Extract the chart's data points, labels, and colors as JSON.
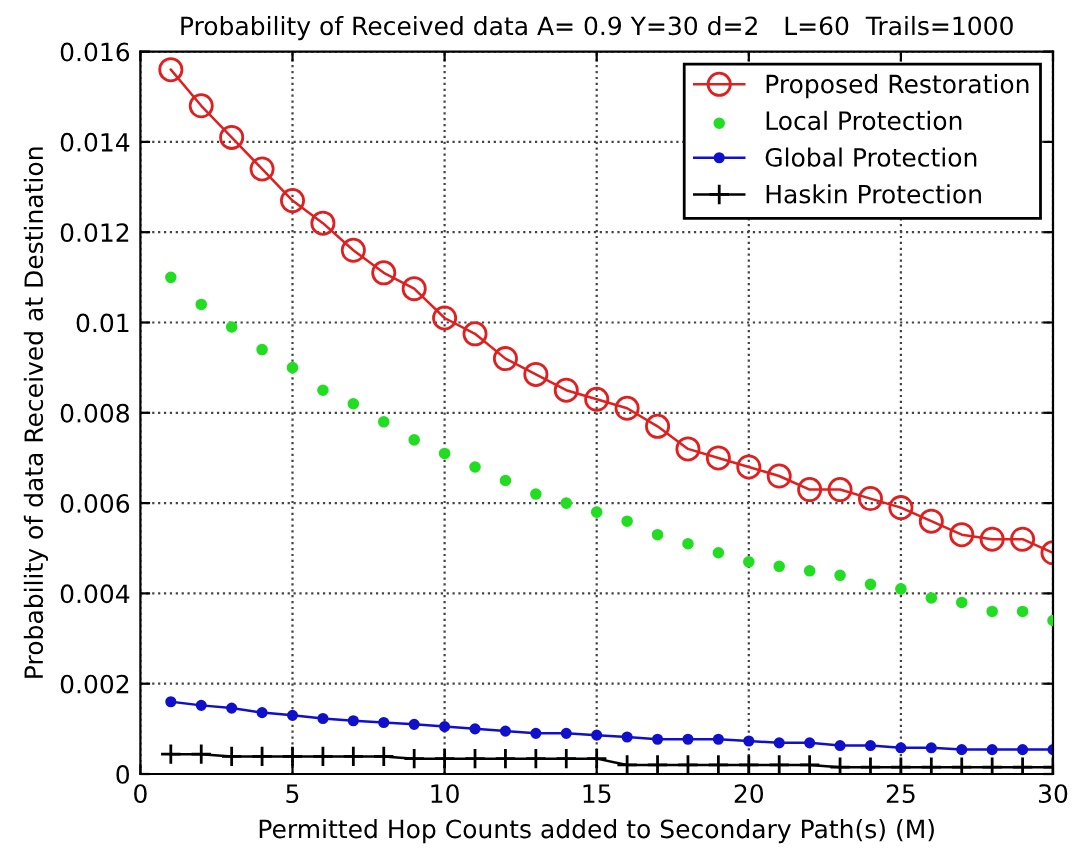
{
  "chart_data": {
    "type": "line",
    "title": "Probability of Received data A= 0.9 Y=30 d=2   L=60  Trails=1000",
    "xlabel": "Permitted Hop Counts added to Secondary Path(s) (M)",
    "ylabel": "Probability of data Received at Destination",
    "x": [
      1,
      2,
      3,
      4,
      5,
      6,
      7,
      8,
      9,
      10,
      11,
      12,
      13,
      14,
      15,
      16,
      17,
      18,
      19,
      20,
      21,
      22,
      23,
      24,
      25,
      26,
      27,
      28,
      29,
      30
    ],
    "series": [
      {
        "name": "Proposed Restoration",
        "color": "#e02020",
        "marker": "circle",
        "line_style": "solid",
        "values": [
          0.0156,
          0.0148,
          0.0141,
          0.0134,
          0.0127,
          0.0122,
          0.0116,
          0.0111,
          0.01075,
          0.0101,
          0.00975,
          0.0092,
          0.00885,
          0.0085,
          0.0083,
          0.0081,
          0.0077,
          0.0072,
          0.007,
          0.0068,
          0.0066,
          0.0063,
          0.0063,
          0.0061,
          0.0059,
          0.0056,
          0.0053,
          0.0052,
          0.0052,
          0.0049
        ]
      },
      {
        "name": "Local Protection",
        "type": "scatter",
        "color": "#22dd22",
        "marker": "point",
        "values": [
          0.011,
          0.0104,
          0.0099,
          0.0094,
          0.009,
          0.0085,
          0.0082,
          0.0078,
          0.0074,
          0.0071,
          0.0068,
          0.0065,
          0.0062,
          0.006,
          0.0058,
          0.0056,
          0.0053,
          0.0051,
          0.0049,
          0.0047,
          0.0046,
          0.0045,
          0.0044,
          0.0042,
          0.0041,
          0.0039,
          0.0038,
          0.0036,
          0.0036,
          0.0034
        ]
      },
      {
        "name": "Global Protection",
        "color": "#1010cc",
        "marker": "point",
        "line_style": "solid",
        "values": [
          0.0016,
          0.00152,
          0.00146,
          0.00136,
          0.0013,
          0.00123,
          0.00118,
          0.00114,
          0.0011,
          0.00105,
          0.001,
          0.00095,
          0.0009,
          0.0009,
          0.00086,
          0.00082,
          0.00077,
          0.00077,
          0.00077,
          0.00073,
          0.00069,
          0.00069,
          0.00063,
          0.00063,
          0.00058,
          0.00058,
          0.00054,
          0.00054,
          0.00054,
          0.00054
        ]
      },
      {
        "name": "Haskin Protection",
        "color": "#000000",
        "marker": "plus",
        "line_style": "solid",
        "values": [
          0.00044,
          0.00044,
          0.00039,
          0.00039,
          0.00039,
          0.00039,
          0.00039,
          0.00039,
          0.00034,
          0.00034,
          0.00034,
          0.00034,
          0.00034,
          0.00034,
          0.00034,
          0.0002,
          0.0002,
          0.0002,
          0.0002,
          0.0002,
          0.0002,
          0.0002,
          0.00015,
          0.00015,
          0.00015,
          0.00015,
          0.00015,
          0.00015,
          0.00015,
          0.00015
        ]
      }
    ],
    "xlim": [
      0,
      30
    ],
    "xticks": [
      0,
      5,
      10,
      15,
      20,
      25,
      30
    ],
    "ylim": [
      0,
      0.016
    ],
    "yticks": [
      {
        "value": 0,
        "label": "0"
      },
      {
        "value": 0.002,
        "label": "0.002"
      },
      {
        "value": 0.004,
        "label": "0.004"
      },
      {
        "value": 0.006,
        "label": "0.006"
      },
      {
        "value": 0.008,
        "label": "0.008"
      },
      {
        "value": 0.01,
        "label": "0.01"
      },
      {
        "value": 0.012,
        "label": "0.012"
      },
      {
        "value": 0.014,
        "label": "0.014"
      },
      {
        "value": 0.016,
        "label": "0.016"
      }
    ],
    "grid": true,
    "legend": "top right"
  }
}
